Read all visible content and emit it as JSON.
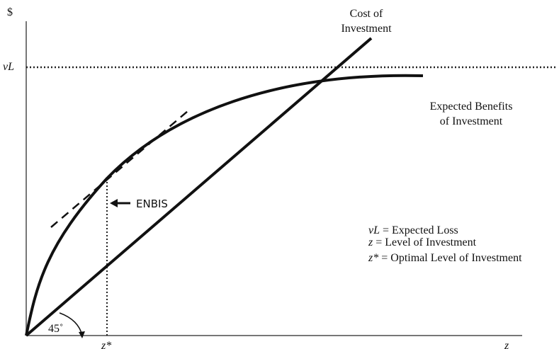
{
  "axes": {
    "y_label": "$",
    "x_label": "z",
    "z_star_label": "z*",
    "vl_label": "vL",
    "angle_label": "45˚"
  },
  "curves": {
    "cost": {
      "line1": "Cost of",
      "line2": "Investment"
    },
    "benefits": {
      "line1": "Expected Benefits",
      "line2": "of Investment"
    }
  },
  "enbis_label": "ENBIS",
  "legend": {
    "row1": {
      "symbol": "vL",
      "text": " = Expected Loss"
    },
    "row2": {
      "symbol": "z",
      "text": " = Level of Investment"
    },
    "row3": {
      "symbol": "z*",
      "text": " = Optimal Level of Investment"
    }
  },
  "colors": {
    "ink": "#111111"
  }
}
